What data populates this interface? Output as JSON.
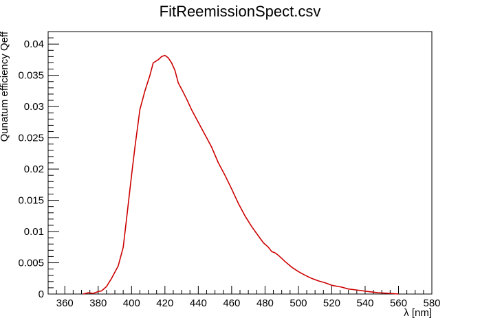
{
  "chart_data": {
    "type": "line",
    "title": "FitReemissionSpect.csv",
    "xlabel": "λ [nm]",
    "ylabel": "Qunatum efficiency Qeff",
    "xlim": [
      350,
      580
    ],
    "ylim": [
      0,
      0.042
    ],
    "grid": false,
    "legend": "none",
    "line_color": "#cc0000",
    "x_ticks": [
      "360",
      "380",
      "400",
      "420",
      "440",
      "460",
      "480",
      "500",
      "520",
      "540",
      "560",
      "580"
    ],
    "x_tick_values": [
      360,
      380,
      400,
      420,
      440,
      460,
      480,
      500,
      520,
      540,
      560,
      580
    ],
    "y_ticks": [
      "0",
      "0.005",
      "0.01",
      "0.015",
      "0.02",
      "0.025",
      "0.03",
      "0.035",
      "0.04"
    ],
    "y_tick_values": [
      0,
      0.005,
      0.01,
      0.015,
      0.02,
      0.025,
      0.03,
      0.035,
      0.04
    ],
    "series": [
      {
        "x": [
          371,
          374,
          377,
          380,
          382,
          385,
          388,
          392,
          395,
          397,
          400,
          402,
          405,
          408,
          411,
          413,
          416,
          418,
          420,
          422,
          424,
          426,
          428,
          430,
          433,
          436,
          440,
          444,
          448,
          452,
          456,
          460,
          464,
          468,
          472,
          476,
          479,
          482,
          484,
          486,
          488,
          492,
          496,
          500,
          504,
          508,
          512,
          516,
          520,
          526,
          530,
          536,
          542,
          548,
          555,
          560
        ],
        "y": [
          0,
          0.0002,
          0.0001,
          0.0004,
          0.0005,
          0.0012,
          0.0025,
          0.0045,
          0.0075,
          0.012,
          0.019,
          0.0235,
          0.0295,
          0.0325,
          0.035,
          0.037,
          0.0375,
          0.038,
          0.0382,
          0.0378,
          0.037,
          0.0358,
          0.0338,
          0.0328,
          0.0312,
          0.0295,
          0.0275,
          0.0255,
          0.0235,
          0.021,
          0.019,
          0.0168,
          0.0145,
          0.0125,
          0.0108,
          0.0093,
          0.0082,
          0.0075,
          0.0068,
          0.0066,
          0.0062,
          0.0052,
          0.0043,
          0.0036,
          0.003,
          0.0025,
          0.0021,
          0.0018,
          0.0014,
          0.0011,
          0.0008,
          0.0006,
          0.0004,
          0.0002,
          0.0001,
          0
        ]
      }
    ]
  }
}
